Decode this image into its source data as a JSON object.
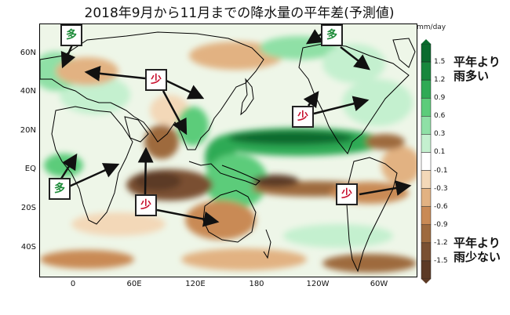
{
  "title": "2018年9月から11月までの降水量の平年差(予測値)",
  "map": {
    "lat_ticks": [
      "60N",
      "40N",
      "20N",
      "EQ",
      "20S",
      "40S"
    ],
    "lon_ticks": [
      "0",
      "60E",
      "120E",
      "180",
      "120W",
      "60W"
    ]
  },
  "colorbar": {
    "unit": "mm/day",
    "labels": [
      "1.5",
      "1.2",
      "0.9",
      "0.6",
      "0.3",
      "0.1",
      "-0.1",
      "-0.3",
      "-0.6",
      "-0.9",
      "-1.2",
      "-1.5"
    ],
    "colors": [
      "#0a6b2e",
      "#17873d",
      "#2faa55",
      "#5ccc7a",
      "#8fe0a6",
      "#c4f0cf",
      "#ffffff",
      "#f3d8b8",
      "#e2b282",
      "#c98a55",
      "#9e6a3e",
      "#7a5032",
      "#5c3a25"
    ],
    "top_text_line1": "平年より",
    "top_text_line2": "雨多い",
    "bottom_text_line1": "平年より",
    "bottom_text_line2": "雨少ない"
  },
  "badges": {
    "wet_label": "多",
    "dry_label": "少"
  }
}
